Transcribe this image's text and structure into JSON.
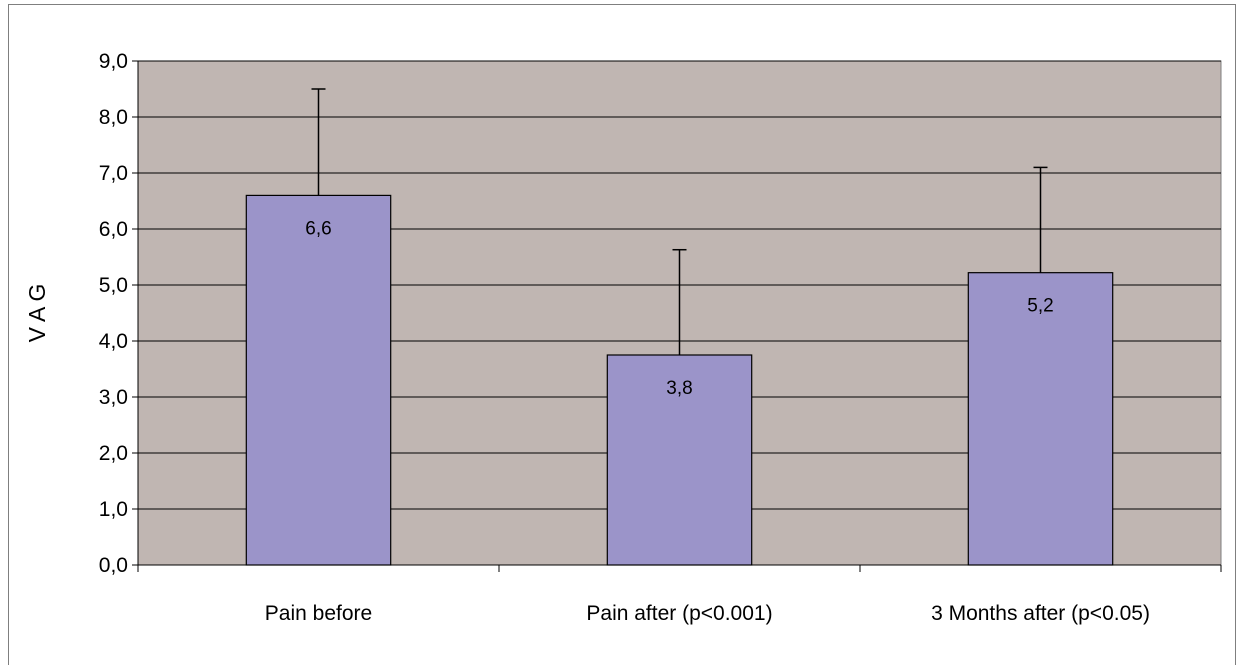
{
  "chart_data": {
    "type": "bar",
    "ylabel": "V A G",
    "categories": [
      "Pain before",
      "Pain after (p<0.001)",
      "3 Months after (p<0.05)"
    ],
    "values": [
      6.6,
      3.75,
      5.22
    ],
    "value_labels": [
      "6,6",
      "3,8",
      "5,2"
    ],
    "error_upper": [
      8.5,
      5.63,
      7.1
    ],
    "ylim": [
      0,
      9
    ],
    "yticks": [
      0,
      1,
      2,
      3,
      4,
      5,
      6,
      7,
      8,
      9
    ],
    "ytick_labels": [
      "0,0",
      "1,0",
      "2,0",
      "3,0",
      "4,0",
      "5,0",
      "6,0",
      "7,0",
      "8,0",
      "9,0"
    ],
    "grid": true,
    "legend": "none",
    "colors": {
      "plot_background": "#c0b6b2",
      "bar_fill": "#9b94c9",
      "bar_stroke": "#000000",
      "gridline": "#000000"
    }
  }
}
